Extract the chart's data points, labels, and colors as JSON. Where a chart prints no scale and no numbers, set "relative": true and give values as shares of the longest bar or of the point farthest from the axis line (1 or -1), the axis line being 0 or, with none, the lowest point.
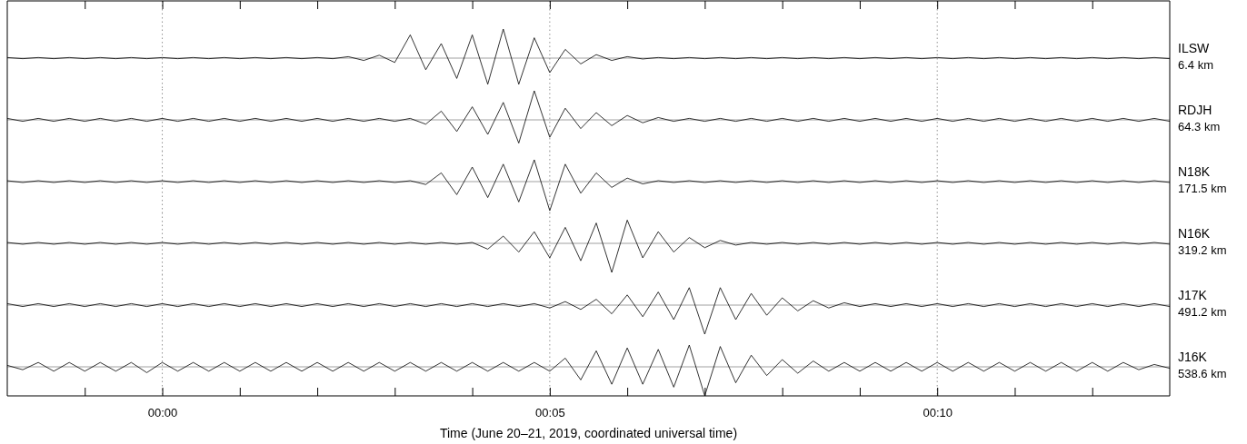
{
  "chart_data": [
    {
      "type": "line",
      "relative": true,
      "tick_labels": false,
      "xlim": [
        -2,
        13
      ],
      "ref_lines": [
        {
          "axis": "x",
          "value": 0,
          "line_style": "dotted"
        },
        {
          "axis": "x",
          "value": 5,
          "line_style": "dotted"
        },
        {
          "axis": "x",
          "value": 10,
          "line_style": "dotted"
        }
      ],
      "x": [
        -2,
        -1.8,
        -1.6,
        -1.4,
        -1.2,
        -1,
        -0.8,
        -0.6,
        -0.4,
        -0.2,
        0,
        0.2,
        0.4,
        0.6,
        0.8,
        1,
        1.2,
        1.4,
        1.6,
        1.8,
        2,
        2.2,
        2.4,
        2.6,
        2.8,
        3,
        3.2,
        3.4,
        3.6,
        3.8,
        4,
        4.2,
        4.4,
        4.6,
        4.8,
        5,
        5.2,
        5.4,
        5.6,
        5.8,
        6,
        6.2,
        6.4,
        6.6,
        6.8,
        7,
        7.2,
        7.4,
        7.6,
        7.8,
        8,
        8.2,
        8.4,
        8.6,
        8.8,
        9,
        9.2,
        9.4,
        9.6,
        9.8,
        10,
        10.2,
        10.4,
        10.6,
        10.8,
        11,
        11.2,
        11.4,
        11.6,
        11.8,
        12,
        12.2,
        12.4,
        12.6,
        12.8,
        13
      ],
      "series": [
        {
          "name": "ILSW 6.4 km",
          "color": "#000000",
          "values": [
            0.02,
            -0.02,
            0.02,
            -0.02,
            0.02,
            -0.02,
            0.02,
            -0.02,
            0.02,
            -0.02,
            0.02,
            -0.02,
            0.02,
            -0.02,
            0.02,
            -0.02,
            0.02,
            -0.02,
            0.02,
            -0.02,
            0.02,
            -0.02,
            0.05,
            -0.08,
            0.1,
            -0.15,
            0.8,
            -0.4,
            0.5,
            -0.7,
            0.8,
            -0.9,
            1,
            -0.9,
            0.7,
            -0.5,
            0.3,
            -0.2,
            0.12,
            -0.08,
            0.05,
            -0.03,
            0.02,
            -0.02,
            0.02,
            -0.02,
            0.02,
            -0.02,
            0.02,
            -0.02,
            0.02,
            -0.02,
            0.02,
            -0.02,
            0.02,
            -0.02,
            0.02,
            -0.02,
            0.02,
            -0.02,
            0.02,
            -0.02,
            0.02,
            -0.02,
            0.02,
            -0.02,
            0.02,
            -0.02,
            0.02,
            -0.02,
            0.02,
            -0.02,
            0.02,
            -0.02,
            0.02,
            -0.02
          ]
        }
      ]
    },
    {
      "type": "line",
      "relative": true,
      "tick_labels": false,
      "xlim": [
        -2,
        13
      ],
      "ref_lines": [
        {
          "axis": "x",
          "value": 0,
          "line_style": "dotted"
        },
        {
          "axis": "x",
          "value": 5,
          "line_style": "dotted"
        },
        {
          "axis": "x",
          "value": 10,
          "line_style": "dotted"
        }
      ],
      "x": [
        -2,
        -1.8,
        -1.6,
        -1.4,
        -1.2,
        -1,
        -0.8,
        -0.6,
        -0.4,
        -0.2,
        0,
        0.2,
        0.4,
        0.6,
        0.8,
        1,
        1.2,
        1.4,
        1.6,
        1.8,
        2,
        2.2,
        2.4,
        2.6,
        2.8,
        3,
        3.2,
        3.4,
        3.6,
        3.8,
        4,
        4.2,
        4.4,
        4.6,
        4.8,
        5,
        5.2,
        5.4,
        5.6,
        5.8,
        6,
        6.2,
        6.4,
        6.6,
        6.8,
        7,
        7.2,
        7.4,
        7.6,
        7.8,
        8,
        8.2,
        8.4,
        8.6,
        8.8,
        9,
        9.2,
        9.4,
        9.6,
        9.8,
        10,
        10.2,
        10.4,
        10.6,
        10.8,
        11,
        11.2,
        11.4,
        11.6,
        11.8,
        12,
        12.2,
        12.4,
        12.6,
        12.8,
        13
      ],
      "series": [
        {
          "name": "RDJH 64.3 km",
          "color": "#000000",
          "values": [
            0.05,
            -0.05,
            0.05,
            -0.05,
            0.05,
            -0.05,
            0.05,
            -0.05,
            0.05,
            -0.05,
            0.05,
            -0.05,
            0.05,
            -0.05,
            0.05,
            -0.05,
            0.05,
            -0.05,
            0.05,
            -0.05,
            0.05,
            -0.05,
            0.05,
            -0.05,
            0.05,
            -0.05,
            0.05,
            -0.15,
            0.3,
            -0.4,
            0.45,
            -0.5,
            0.6,
            -0.8,
            1,
            -0.6,
            0.4,
            -0.3,
            0.25,
            -0.2,
            0.15,
            -0.1,
            0.08,
            -0.05,
            0.05,
            -0.05,
            0.05,
            -0.05,
            0.05,
            -0.05,
            0.05,
            -0.05,
            0.05,
            -0.05,
            0.05,
            -0.05,
            0.05,
            -0.05,
            0.05,
            -0.05,
            0.05,
            -0.05,
            0.05,
            -0.05,
            0.05,
            -0.05,
            0.05,
            -0.05,
            0.05,
            -0.05,
            0.05,
            -0.05,
            0.05,
            -0.05,
            0.05,
            -0.05
          ]
        }
      ]
    },
    {
      "type": "line",
      "relative": true,
      "tick_labels": false,
      "xlim": [
        -2,
        13
      ],
      "ref_lines": [
        {
          "axis": "x",
          "value": 0,
          "line_style": "dotted"
        },
        {
          "axis": "x",
          "value": 5,
          "line_style": "dotted"
        },
        {
          "axis": "x",
          "value": 10,
          "line_style": "dotted"
        }
      ],
      "x": [
        -2,
        -1.8,
        -1.6,
        -1.4,
        -1.2,
        -1,
        -0.8,
        -0.6,
        -0.4,
        -0.2,
        0,
        0.2,
        0.4,
        0.6,
        0.8,
        1,
        1.2,
        1.4,
        1.6,
        1.8,
        2,
        2.2,
        2.4,
        2.6,
        2.8,
        3,
        3.2,
        3.4,
        3.6,
        3.8,
        4,
        4.2,
        4.4,
        4.6,
        4.8,
        5,
        5.2,
        5.4,
        5.6,
        5.8,
        6,
        6.2,
        6.4,
        6.6,
        6.8,
        7,
        7.2,
        7.4,
        7.6,
        7.8,
        8,
        8.2,
        8.4,
        8.6,
        8.8,
        9,
        9.2,
        9.4,
        9.6,
        9.8,
        10,
        10.2,
        10.4,
        10.6,
        10.8,
        11,
        11.2,
        11.4,
        11.6,
        11.8,
        12,
        12.2,
        12.4,
        12.6,
        12.8,
        13
      ],
      "series": [
        {
          "name": "N18K 171.5 km",
          "color": "#000000",
          "values": [
            0.03,
            -0.03,
            0.03,
            -0.03,
            0.03,
            -0.03,
            0.03,
            -0.03,
            0.03,
            -0.03,
            0.03,
            -0.03,
            0.03,
            -0.03,
            0.03,
            -0.03,
            0.03,
            -0.03,
            0.03,
            -0.03,
            0.03,
            -0.03,
            0.03,
            -0.03,
            0.03,
            -0.03,
            0.03,
            -0.1,
            0.3,
            -0.45,
            0.5,
            -0.55,
            0.6,
            -0.7,
            0.75,
            -1,
            0.6,
            -0.4,
            0.3,
            -0.2,
            0.12,
            -0.08,
            0.03,
            -0.03,
            0.03,
            -0.03,
            0.03,
            -0.03,
            0.03,
            -0.03,
            0.03,
            -0.03,
            0.03,
            -0.03,
            0.03,
            -0.03,
            0.03,
            -0.03,
            0.03,
            -0.03,
            0.03,
            -0.03,
            0.03,
            -0.03,
            0.03,
            -0.03,
            0.03,
            -0.03,
            0.03,
            -0.03,
            0.03,
            -0.03,
            0.03,
            -0.03,
            0.03,
            -0.03
          ]
        }
      ]
    },
    {
      "type": "line",
      "relative": true,
      "tick_labels": false,
      "xlim": [
        -2,
        13
      ],
      "ref_lines": [
        {
          "axis": "x",
          "value": 0,
          "line_style": "dotted"
        },
        {
          "axis": "x",
          "value": 5,
          "line_style": "dotted"
        },
        {
          "axis": "x",
          "value": 10,
          "line_style": "dotted"
        }
      ],
      "x": [
        -2,
        -1.8,
        -1.6,
        -1.4,
        -1.2,
        -1,
        -0.8,
        -0.6,
        -0.4,
        -0.2,
        0,
        0.2,
        0.4,
        0.6,
        0.8,
        1,
        1.2,
        1.4,
        1.6,
        1.8,
        2,
        2.2,
        2.4,
        2.6,
        2.8,
        3,
        3.2,
        3.4,
        3.6,
        3.8,
        4,
        4.2,
        4.4,
        4.6,
        4.8,
        5,
        5.2,
        5.4,
        5.6,
        5.8,
        6,
        6.2,
        6.4,
        6.6,
        6.8,
        7,
        7.2,
        7.4,
        7.6,
        7.8,
        8,
        8.2,
        8.4,
        8.6,
        8.8,
        9,
        9.2,
        9.4,
        9.6,
        9.8,
        10,
        10.2,
        10.4,
        10.6,
        10.8,
        11,
        11.2,
        11.4,
        11.6,
        11.8,
        12,
        12.2,
        12.4,
        12.6,
        12.8,
        13
      ],
      "series": [
        {
          "name": "N16K 319.2 km",
          "color": "#000000",
          "values": [
            0.03,
            -0.03,
            0.03,
            -0.03,
            0.03,
            -0.03,
            0.03,
            -0.03,
            0.03,
            -0.03,
            0.03,
            -0.03,
            0.03,
            -0.03,
            0.03,
            -0.03,
            0.03,
            -0.03,
            0.03,
            -0.03,
            0.03,
            -0.03,
            0.03,
            -0.03,
            0.03,
            -0.03,
            0.03,
            -0.03,
            0.03,
            -0.03,
            0.03,
            -0.2,
            0.25,
            -0.3,
            0.4,
            -0.5,
            0.55,
            -0.6,
            0.7,
            -1,
            0.8,
            -0.5,
            0.4,
            -0.3,
            0.2,
            -0.15,
            0.1,
            -0.06,
            0.03,
            -0.03,
            0.03,
            -0.03,
            0.03,
            -0.03,
            0.03,
            -0.03,
            0.03,
            -0.03,
            0.03,
            -0.03,
            0.03,
            -0.03,
            0.03,
            -0.03,
            0.03,
            -0.03,
            0.03,
            -0.03,
            0.03,
            -0.03,
            0.03,
            -0.03,
            0.03,
            -0.03,
            0.03,
            -0.03
          ]
        }
      ]
    },
    {
      "type": "line",
      "relative": true,
      "tick_labels": false,
      "xlim": [
        -2,
        13
      ],
      "ref_lines": [
        {
          "axis": "x",
          "value": 0,
          "line_style": "dotted"
        },
        {
          "axis": "x",
          "value": 5,
          "line_style": "dotted"
        },
        {
          "axis": "x",
          "value": 10,
          "line_style": "dotted"
        }
      ],
      "x": [
        -2,
        -1.8,
        -1.6,
        -1.4,
        -1.2,
        -1,
        -0.8,
        -0.6,
        -0.4,
        -0.2,
        0,
        0.2,
        0.4,
        0.6,
        0.8,
        1,
        1.2,
        1.4,
        1.6,
        1.8,
        2,
        2.2,
        2.4,
        2.6,
        2.8,
        3,
        3.2,
        3.4,
        3.6,
        3.8,
        4,
        4.2,
        4.4,
        4.6,
        4.8,
        5,
        5.2,
        5.4,
        5.6,
        5.8,
        6,
        6.2,
        6.4,
        6.6,
        6.8,
        7,
        7.2,
        7.4,
        7.6,
        7.8,
        8,
        8.2,
        8.4,
        8.6,
        8.8,
        9,
        9.2,
        9.4,
        9.6,
        9.8,
        10,
        10.2,
        10.4,
        10.6,
        10.8,
        11,
        11.2,
        11.4,
        11.6,
        11.8,
        12,
        12.2,
        12.4,
        12.6,
        12.8,
        13
      ],
      "series": [
        {
          "name": "J17K 491.2 km",
          "color": "#000000",
          "values": [
            0.05,
            -0.05,
            0.05,
            -0.05,
            0.05,
            -0.05,
            0.05,
            -0.05,
            0.05,
            -0.05,
            0.05,
            -0.05,
            0.05,
            -0.05,
            0.05,
            -0.05,
            0.05,
            -0.05,
            0.05,
            -0.05,
            0.05,
            -0.05,
            0.05,
            -0.05,
            0.05,
            -0.05,
            0.05,
            -0.05,
            0.05,
            -0.05,
            0.05,
            -0.05,
            0.05,
            -0.05,
            0.05,
            -0.1,
            0.12,
            -0.15,
            0.2,
            -0.3,
            0.35,
            -0.4,
            0.45,
            -0.5,
            0.6,
            -1,
            0.6,
            -0.5,
            0.4,
            -0.35,
            0.25,
            -0.2,
            0.15,
            -0.1,
            0.08,
            -0.05,
            0.05,
            -0.05,
            0.05,
            -0.05,
            0.05,
            -0.05,
            0.05,
            -0.05,
            0.05,
            -0.05,
            0.05,
            -0.05,
            0.05,
            -0.05,
            0.05,
            -0.05,
            0.05,
            -0.05,
            0.05,
            -0.05
          ]
        }
      ]
    },
    {
      "type": "line",
      "xlabel": "Time (June 20–21, 2019, coordinated universal time)",
      "relative": true,
      "tick_labels": "x",
      "xlim": [
        -2,
        13
      ],
      "xticks": [
        {
          "value": -1,
          "label": null
        },
        {
          "value": 0,
          "label": "00:00"
        },
        {
          "value": 1,
          "label": null
        },
        {
          "value": 2,
          "label": null
        },
        {
          "value": 3,
          "label": null
        },
        {
          "value": 4,
          "label": null
        },
        {
          "value": 5,
          "label": "00:05"
        },
        {
          "value": 6,
          "label": null
        },
        {
          "value": 7,
          "label": null
        },
        {
          "value": 8,
          "label": null
        },
        {
          "value": 9,
          "label": null
        },
        {
          "value": 10,
          "label": "00:10"
        },
        {
          "value": 11,
          "label": null
        },
        {
          "value": 12,
          "label": null
        }
      ],
      "ref_lines": [
        {
          "axis": "x",
          "value": 0,
          "line_style": "dotted"
        },
        {
          "axis": "x",
          "value": 5,
          "line_style": "dotted"
        },
        {
          "axis": "x",
          "value": 10,
          "line_style": "dotted"
        }
      ],
      "x": [
        -2,
        -1.8,
        -1.6,
        -1.4,
        -1.2,
        -1,
        -0.8,
        -0.6,
        -0.4,
        -0.2,
        0,
        0.2,
        0.4,
        0.6,
        0.8,
        1,
        1.2,
        1.4,
        1.6,
        1.8,
        2,
        2.2,
        2.4,
        2.6,
        2.8,
        3,
        3.2,
        3.4,
        3.6,
        3.8,
        4,
        4.2,
        4.4,
        4.6,
        4.8,
        5,
        5.2,
        5.4,
        5.6,
        5.8,
        6,
        6.2,
        6.4,
        6.6,
        6.8,
        7,
        7.2,
        7.4,
        7.6,
        7.8,
        8,
        8.2,
        8.4,
        8.6,
        8.8,
        9,
        9.2,
        9.4,
        9.6,
        9.8,
        10,
        10.2,
        10.4,
        10.6,
        10.8,
        11,
        11.2,
        11.4,
        11.6,
        11.8,
        12,
        12.2,
        12.4,
        12.6,
        12.8,
        13
      ],
      "series": [
        {
          "name": "J16K 538.6 km",
          "color": "#000000",
          "values": [
            0.05,
            -0.1,
            0.15,
            -0.15,
            0.15,
            -0.15,
            0.15,
            -0.15,
            0.15,
            -0.2,
            0.15,
            -0.15,
            0.15,
            -0.15,
            0.15,
            -0.15,
            0.15,
            -0.15,
            0.15,
            -0.15,
            0.15,
            -0.15,
            0.15,
            -0.15,
            0.15,
            -0.15,
            0.15,
            -0.15,
            0.15,
            -0.15,
            0.15,
            -0.15,
            0.15,
            -0.15,
            0.15,
            -0.15,
            0.3,
            -0.45,
            0.55,
            -0.6,
            0.65,
            -0.6,
            0.6,
            -0.7,
            0.75,
            -1,
            0.7,
            -0.55,
            0.4,
            -0.3,
            0.25,
            -0.22,
            0.2,
            -0.15,
            0.15,
            -0.15,
            0.15,
            -0.15,
            0.15,
            -0.15,
            0.15,
            -0.15,
            0.15,
            -0.15,
            0.15,
            -0.15,
            0.15,
            -0.15,
            0.15,
            -0.15,
            0.15,
            -0.15,
            0.15,
            -0.1,
            0.08,
            -0.05
          ]
        }
      ]
    }
  ]
}
